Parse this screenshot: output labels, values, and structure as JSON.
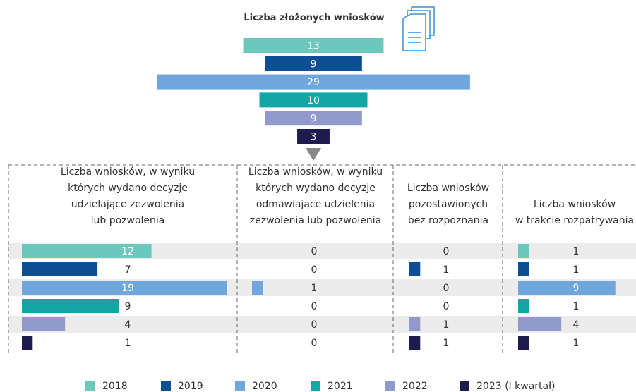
{
  "chart_data": [
    {
      "type": "funnel",
      "title": "Liczba złożonych wniosków",
      "categories": [
        "2018",
        "2019",
        "2020",
        "2021",
        "2022",
        "2023 (I kwartał)"
      ],
      "values": [
        13,
        9,
        29,
        10,
        9,
        3
      ],
      "colors": [
        "#6cc7bd",
        "#0d4f94",
        "#6fa6dc",
        "#14a5a5",
        "#9299cc",
        "#1e1b4f"
      ]
    },
    {
      "type": "bar",
      "title": "Liczba wniosków, w wyniku\nktórych wydano decyzje\nudzielające zezwolenia\nlub pozwolenia",
      "values": [
        12,
        7,
        19,
        9,
        4,
        1
      ]
    },
    {
      "type": "bar",
      "title": "Liczba wniosków, w wyniku\nktórych wydano decyzje\nodmawiające udzielenia\nzezwolenia lub pozwolenia",
      "values": [
        0,
        0,
        1,
        0,
        0,
        0
      ]
    },
    {
      "type": "bar",
      "title": "Liczba wniosków\npozostawionych\nbez rozpoznania",
      "values": [
        0,
        1,
        0,
        0,
        1,
        1
      ]
    },
    {
      "type": "bar",
      "title": "Liczba wniosków\nw trakcie rozpatrywania",
      "values": [
        1,
        1,
        9,
        1,
        4,
        1
      ]
    }
  ]
}
